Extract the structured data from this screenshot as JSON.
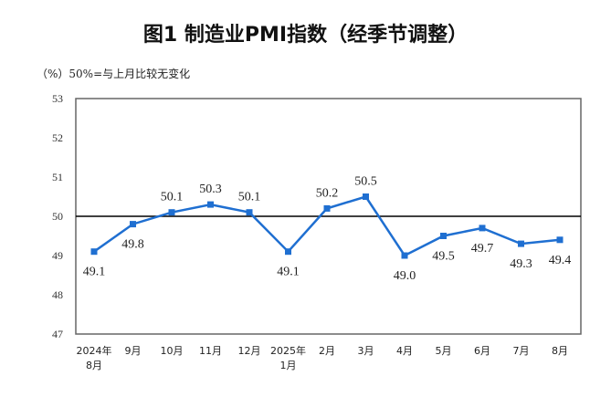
{
  "chart_data": {
    "type": "line",
    "title": "图1  制造业PMI指数（经季节调整）",
    "unit_label": "（%）",
    "annotation": "50%=与上月比较无变化",
    "categories": [
      [
        "2024年",
        "8月"
      ],
      [
        "9月"
      ],
      [
        "10月"
      ],
      [
        "11月"
      ],
      [
        "12月"
      ],
      [
        "2025年",
        "1月"
      ],
      [
        "2月"
      ],
      [
        "3月"
      ],
      [
        "4月"
      ],
      [
        "5月"
      ],
      [
        "6月"
      ],
      [
        "7月"
      ],
      [
        "8月"
      ]
    ],
    "series": [
      {
        "name": "制造业PMI",
        "values": [
          49.1,
          49.8,
          50.1,
          50.3,
          50.1,
          49.1,
          50.2,
          50.5,
          49.0,
          49.5,
          49.7,
          49.3,
          49.4
        ],
        "color": "#1f6fd1"
      }
    ],
    "reference_line": 50,
    "ylim": [
      47,
      53
    ],
    "yticks": [
      47,
      48,
      49,
      50,
      51,
      52,
      53
    ],
    "grid": false
  }
}
